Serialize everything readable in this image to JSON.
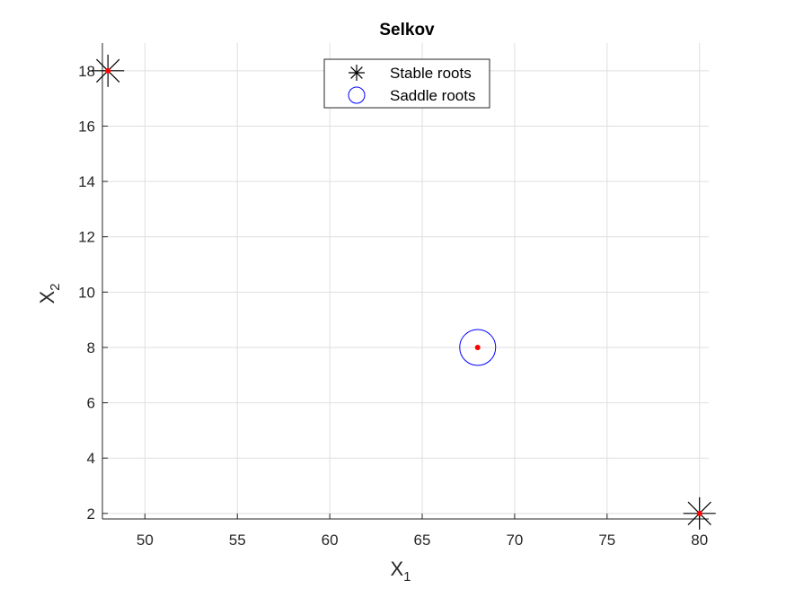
{
  "chart_data": {
    "type": "scatter",
    "title": "Selkov",
    "xlabel": {
      "base": "X",
      "sub": "1"
    },
    "ylabel": {
      "base": "X",
      "sub": "2"
    },
    "xlim": [
      47.7,
      80.5
    ],
    "ylim": [
      1.8,
      19.0
    ],
    "xticks": [
      50,
      55,
      60,
      65,
      70,
      75,
      80
    ],
    "yticks": [
      2,
      4,
      6,
      8,
      10,
      12,
      14,
      16,
      18
    ],
    "grid": true,
    "legend_position": "top-center",
    "series": [
      {
        "name": "Stable roots",
        "marker": "asterisk",
        "color": "#000000",
        "points": [
          {
            "x": 48,
            "y": 18
          },
          {
            "x": 80,
            "y": 2
          }
        ]
      },
      {
        "name": "Saddle roots",
        "marker": "circle",
        "color": "#0000ff",
        "points": [
          {
            "x": 68,
            "y": 8
          }
        ]
      }
    ],
    "root_dots": {
      "color": "#ff0000",
      "points": [
        {
          "x": 48,
          "y": 18
        },
        {
          "x": 80,
          "y": 2
        },
        {
          "x": 68,
          "y": 8
        }
      ]
    }
  }
}
